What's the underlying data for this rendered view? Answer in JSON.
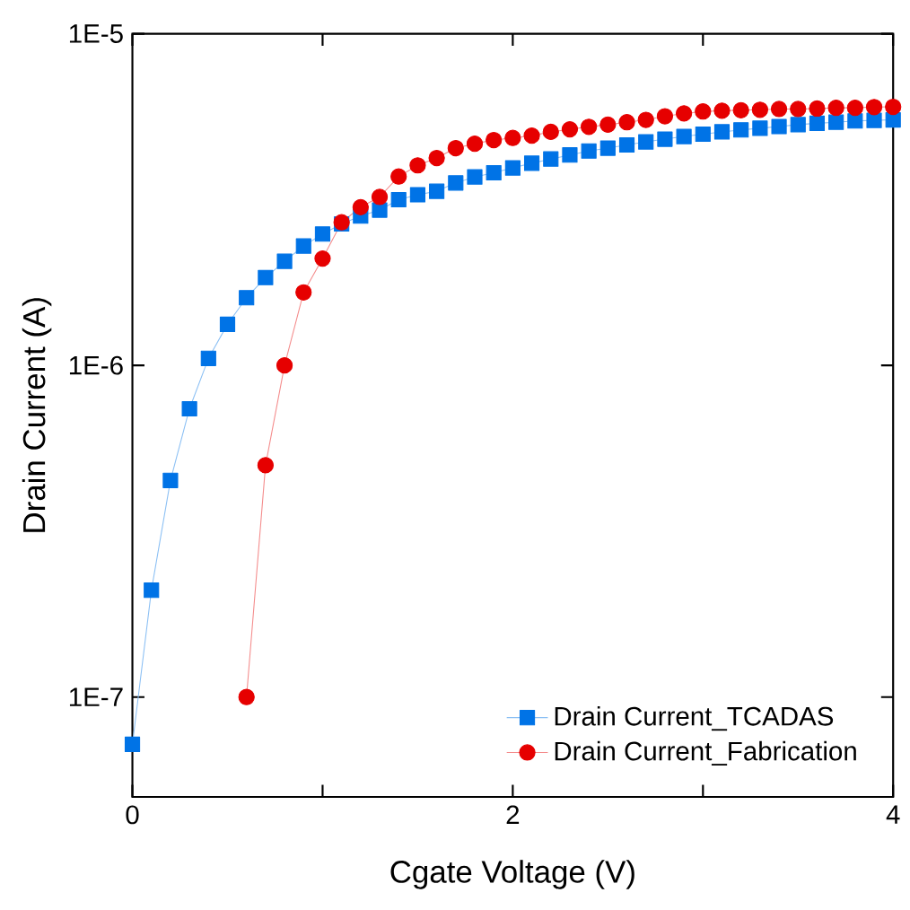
{
  "chart_data": {
    "type": "line",
    "xlabel": "Cgate Voltage (V)",
    "ylabel": "Drain Current (A)",
    "log": "y",
    "xlim": [
      0,
      4
    ],
    "xticks": [
      0,
      {
        "value": 1,
        "label": null
      },
      2,
      {
        "value": 3,
        "label": null
      },
      4
    ],
    "ylim": [
      5e-08,
      1e-05
    ],
    "yticks": [
      {
        "value": 1e-07,
        "label": "1E-7"
      },
      {
        "value": 1e-06,
        "label": "1E-6"
      },
      {
        "value": 1e-05,
        "label": "1E-5"
      }
    ],
    "grid": false,
    "legend": "bottom right",
    "series": [
      {
        "name": "Drain Current_TCADAS",
        "color": "#0073e6",
        "marker": "square",
        "x": [
          0,
          0.1,
          0.2,
          0.3,
          0.4,
          0.5,
          0.6,
          0.7,
          0.8,
          0.9,
          1.0,
          1.1,
          1.2,
          1.3,
          1.4,
          1.5,
          1.6,
          1.7,
          1.8,
          1.9,
          2.0,
          2.1,
          2.2,
          2.3,
          2.4,
          2.5,
          2.6,
          2.7,
          2.8,
          2.9,
          3.0,
          3.1,
          3.2,
          3.3,
          3.4,
          3.5,
          3.6,
          3.7,
          3.8,
          3.9,
          4.0
        ],
        "values": [
          7.2e-08,
          2.1e-07,
          4.5e-07,
          7.4e-07,
          1.05e-06,
          1.33e-06,
          1.6e-06,
          1.84e-06,
          2.06e-06,
          2.29e-06,
          2.49e-06,
          2.67e-06,
          2.82e-06,
          2.94e-06,
          3.16e-06,
          3.27e-06,
          3.35e-06,
          3.55e-06,
          3.7e-06,
          3.81e-06,
          3.94e-06,
          4.07e-06,
          4.19e-06,
          4.31e-06,
          4.43e-06,
          4.52e-06,
          4.62e-06,
          4.72e-06,
          4.81e-06,
          4.9e-06,
          4.98e-06,
          5.06e-06,
          5.13e-06,
          5.19e-06,
          5.25e-06,
          5.32e-06,
          5.37e-06,
          5.41e-06,
          5.46e-06,
          5.48e-06,
          5.5e-06
        ]
      },
      {
        "name": "Drain Current_Fabrication",
        "color": "#e60000",
        "marker": "circle",
        "x": [
          0.6,
          0.7,
          0.8,
          0.9,
          1.0,
          1.1,
          1.2,
          1.3,
          1.4,
          1.5,
          1.6,
          1.7,
          1.8,
          1.9,
          2.0,
          2.1,
          2.2,
          2.3,
          2.4,
          2.5,
          2.6,
          2.7,
          2.8,
          2.9,
          3.0,
          3.1,
          3.2,
          3.3,
          3.4,
          3.5,
          3.6,
          3.7,
          3.8,
          3.9,
          4.0
        ],
        "values": [
          1e-07,
          5e-07,
          1e-06,
          1.66e-06,
          2.1e-06,
          2.7e-06,
          3e-06,
          3.22e-06,
          3.71e-06,
          4.01e-06,
          4.22e-06,
          4.52e-06,
          4.66e-06,
          4.78e-06,
          4.85e-06,
          4.93e-06,
          5.06e-06,
          5.15e-06,
          5.24e-06,
          5.32e-06,
          5.41e-06,
          5.5e-06,
          5.64e-06,
          5.75e-06,
          5.83e-06,
          5.86e-06,
          5.88e-06,
          5.9e-06,
          5.93e-06,
          5.93e-06,
          5.95e-06,
          5.98e-06,
          5.98e-06,
          6.01e-06,
          6.02e-06
        ]
      }
    ]
  }
}
